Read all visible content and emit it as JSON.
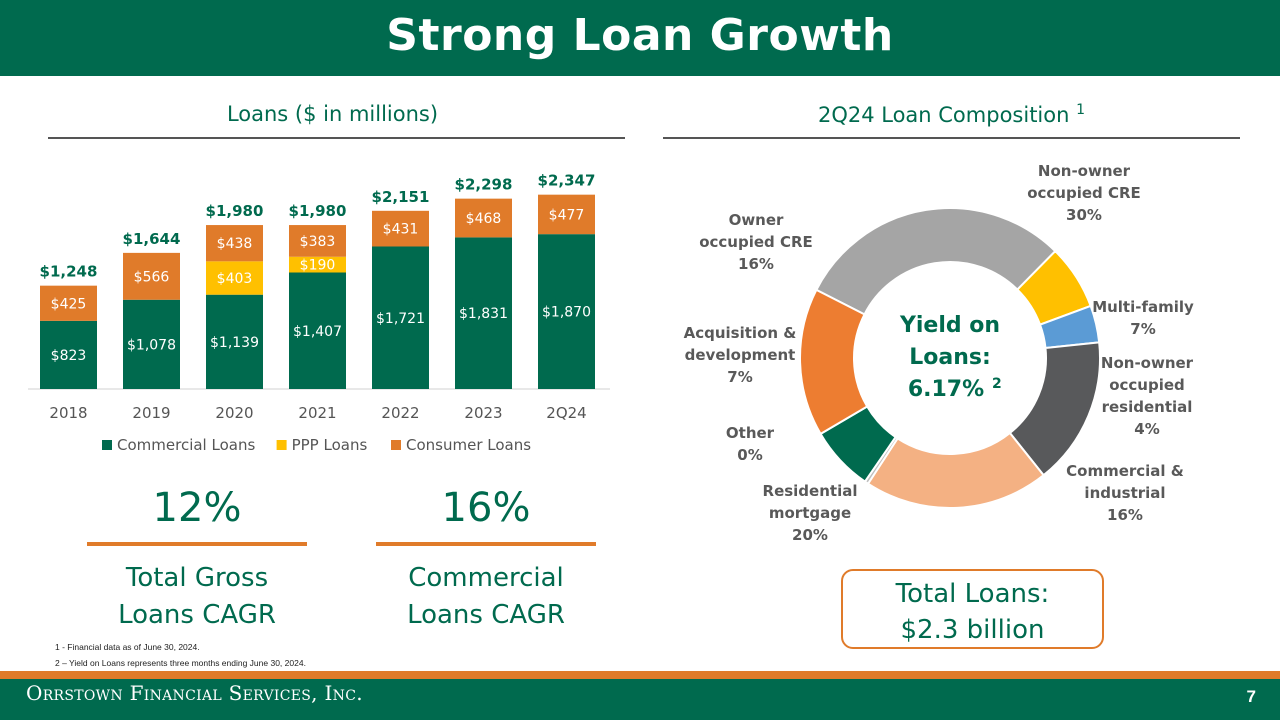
{
  "title": "Strong Loan Growth",
  "bar_section_title": "Loans ($ in millions)",
  "pie_section_title": "2Q24 Loan Composition",
  "pie_section_title_sup": "1",
  "colors": {
    "green": "#006a4e",
    "orange": "#e07b2a",
    "ppp": "#ffc000"
  },
  "chart_data": [
    {
      "type": "bar",
      "stacked": true,
      "title": "Loans ($ in millions)",
      "categories": [
        "2018",
        "2019",
        "2020",
        "2021",
        "2022",
        "2023",
        "2Q24"
      ],
      "series": [
        {
          "name": "Commercial Loans",
          "color": "#006a4e",
          "values": [
            823,
            1078,
            1139,
            1407,
            1721,
            1831,
            1870
          ],
          "labels": [
            "$823",
            "$1,078",
            "$1,139",
            "$1,407",
            "$1,721",
            "$1,831",
            "$1,870"
          ]
        },
        {
          "name": "PPP Loans",
          "color": "#ffc000",
          "values": [
            0,
            0,
            403,
            190,
            0,
            0,
            0
          ],
          "labels": [
            "",
            "",
            "$403",
            "$190",
            "",
            "",
            ""
          ]
        },
        {
          "name": "Consumer Loans",
          "color": "#e07b2a",
          "values": [
            425,
            566,
            438,
            383,
            431,
            468,
            477
          ],
          "labels": [
            "$425",
            "$566",
            "$438",
            "$383",
            "$431",
            "$468",
            "$477"
          ]
        }
      ],
      "totals": [
        "$1,248",
        "$1,644",
        "$1,980",
        "$1,980",
        "$2,151",
        "$2,298",
        "$2,347"
      ],
      "legend_position": "bottom"
    },
    {
      "type": "pie",
      "donut": true,
      "title": "2Q24 Loan Composition",
      "center_text": [
        "Yield on",
        "Loans:",
        "6.17%"
      ],
      "center_sup": "2",
      "slices": [
        {
          "label_lines": [
            "Non-owner",
            "occupied CRE",
            "30%"
          ],
          "value": 30,
          "color": "#a5a5a5"
        },
        {
          "label_lines": [
            "Multi-family",
            "7%"
          ],
          "value": 7,
          "color": "#ffc000"
        },
        {
          "label_lines": [
            "Non-owner",
            "occupied",
            "residential",
            "4%"
          ],
          "value": 4,
          "color": "#5b9bd5"
        },
        {
          "label_lines": [
            "Commercial &",
            "industrial",
            "16%"
          ],
          "value": 16,
          "color": "#58595b"
        },
        {
          "label_lines": [
            "Residential",
            "mortgage",
            "20%"
          ],
          "value": 20,
          "color": "#f4b183"
        },
        {
          "label_lines": [
            "Other",
            "0%"
          ],
          "value": 0.4,
          "color": "#bfbfbf"
        },
        {
          "label_lines": [
            "Acquisition &",
            "development",
            "7%"
          ],
          "value": 7,
          "color": "#006a4e"
        },
        {
          "label_lines": [
            "Owner",
            "occupied CRE",
            "16%"
          ],
          "value": 16,
          "color": "#ed7d31"
        }
      ]
    }
  ],
  "stats": [
    {
      "value": "12%",
      "label_line1": "Total Gross",
      "label_line2": "Loans CAGR"
    },
    {
      "value": "16%",
      "label_line1": "Commercial",
      "label_line2": "Loans CAGR"
    }
  ],
  "total_box": {
    "line1": "Total Loans:",
    "line2": "$2.3 billion"
  },
  "footnotes": [
    "1 -  Financial data as of June 30, 2024.",
    "2 – Yield on Loans represents three months ending June 30, 2024."
  ],
  "footer": {
    "logo": "Orrstown Financial Services, Inc.",
    "page": "7"
  }
}
